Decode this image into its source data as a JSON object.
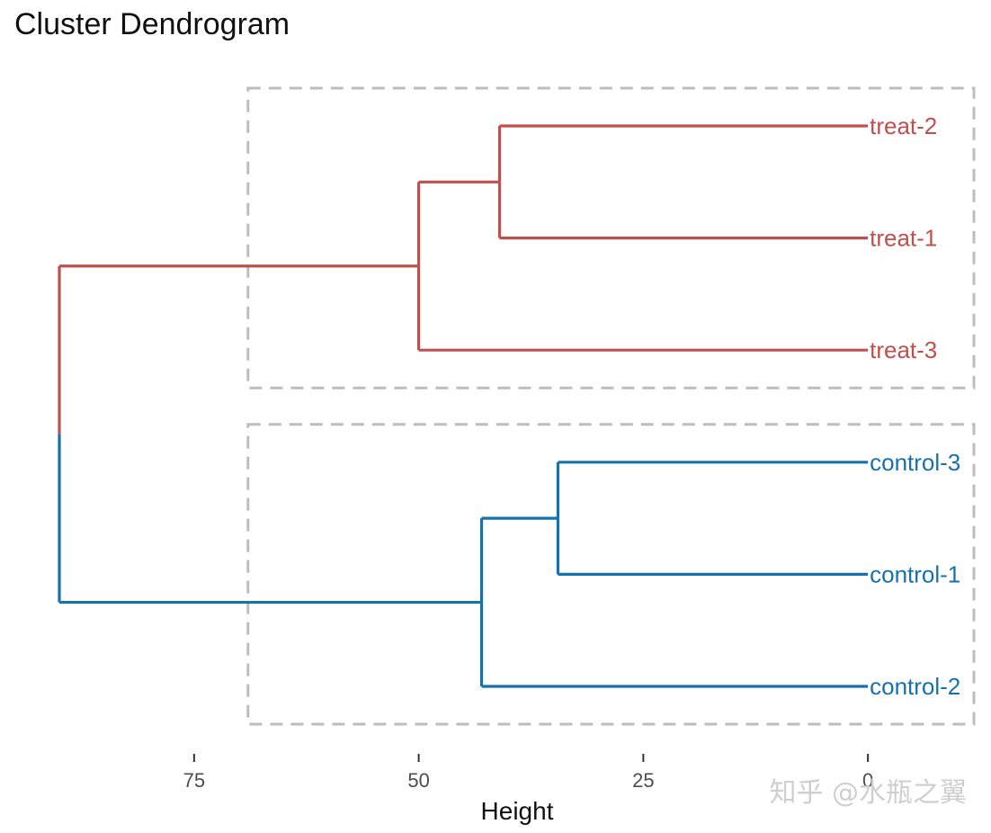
{
  "chart_data": {
    "type": "dendrogram",
    "title": "Cluster Dendrogram",
    "xlabel": "Height",
    "ylabel": "",
    "orientation": "horizontal",
    "xlim": [
      90,
      -12
    ],
    "x_ticks": [
      75,
      50,
      25,
      0
    ],
    "x_tick_labels": [
      "75",
      "50",
      "25",
      "0"
    ],
    "leaves": [
      {
        "label": "treat-2",
        "group": "treat"
      },
      {
        "label": "treat-1",
        "group": "treat"
      },
      {
        "label": "treat-3",
        "group": "treat"
      },
      {
        "label": "control-3",
        "group": "control"
      },
      {
        "label": "control-1",
        "group": "control"
      },
      {
        "label": "control-2",
        "group": "control"
      }
    ],
    "merges": [
      {
        "id": "m1",
        "children": [
          "treat-2",
          "treat-1"
        ],
        "height": 41
      },
      {
        "id": "m2",
        "children": [
          "m1",
          "treat-3"
        ],
        "height": 50
      },
      {
        "id": "m3",
        "children": [
          "control-3",
          "control-1"
        ],
        "height": 34.5
      },
      {
        "id": "m4",
        "children": [
          "m3",
          "control-2"
        ],
        "height": 43
      },
      {
        "id": "m5",
        "children": [
          "m2",
          "m4"
        ],
        "height": 90
      }
    ],
    "clusters": [
      {
        "name": "treat",
        "members": [
          "treat-2",
          "treat-1",
          "treat-3"
        ],
        "color": "#c0504d"
      },
      {
        "name": "control",
        "members": [
          "control-3",
          "control-1",
          "control-2"
        ],
        "color": "#1672aa"
      }
    ],
    "cluster_box_color": "#bdbdbd",
    "cluster_box_x_from": 69,
    "watermark": "知乎 @水瓶之翼"
  }
}
